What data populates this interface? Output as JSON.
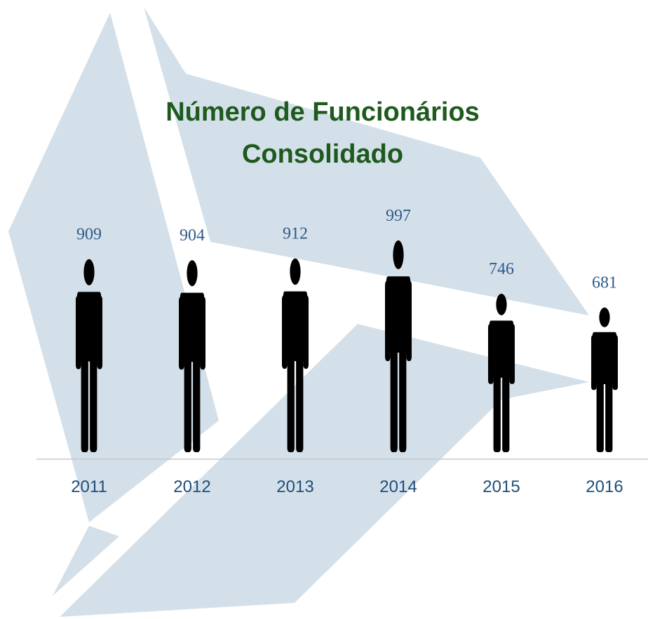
{
  "chart_data": {
    "type": "pictograph",
    "title": "Número de Funcionários Consolidado",
    "categories": [
      "2011",
      "2012",
      "2013",
      "2014",
      "2015",
      "2016"
    ],
    "values": [
      909,
      904,
      912,
      997,
      746,
      681
    ],
    "color": "#000000"
  }
}
